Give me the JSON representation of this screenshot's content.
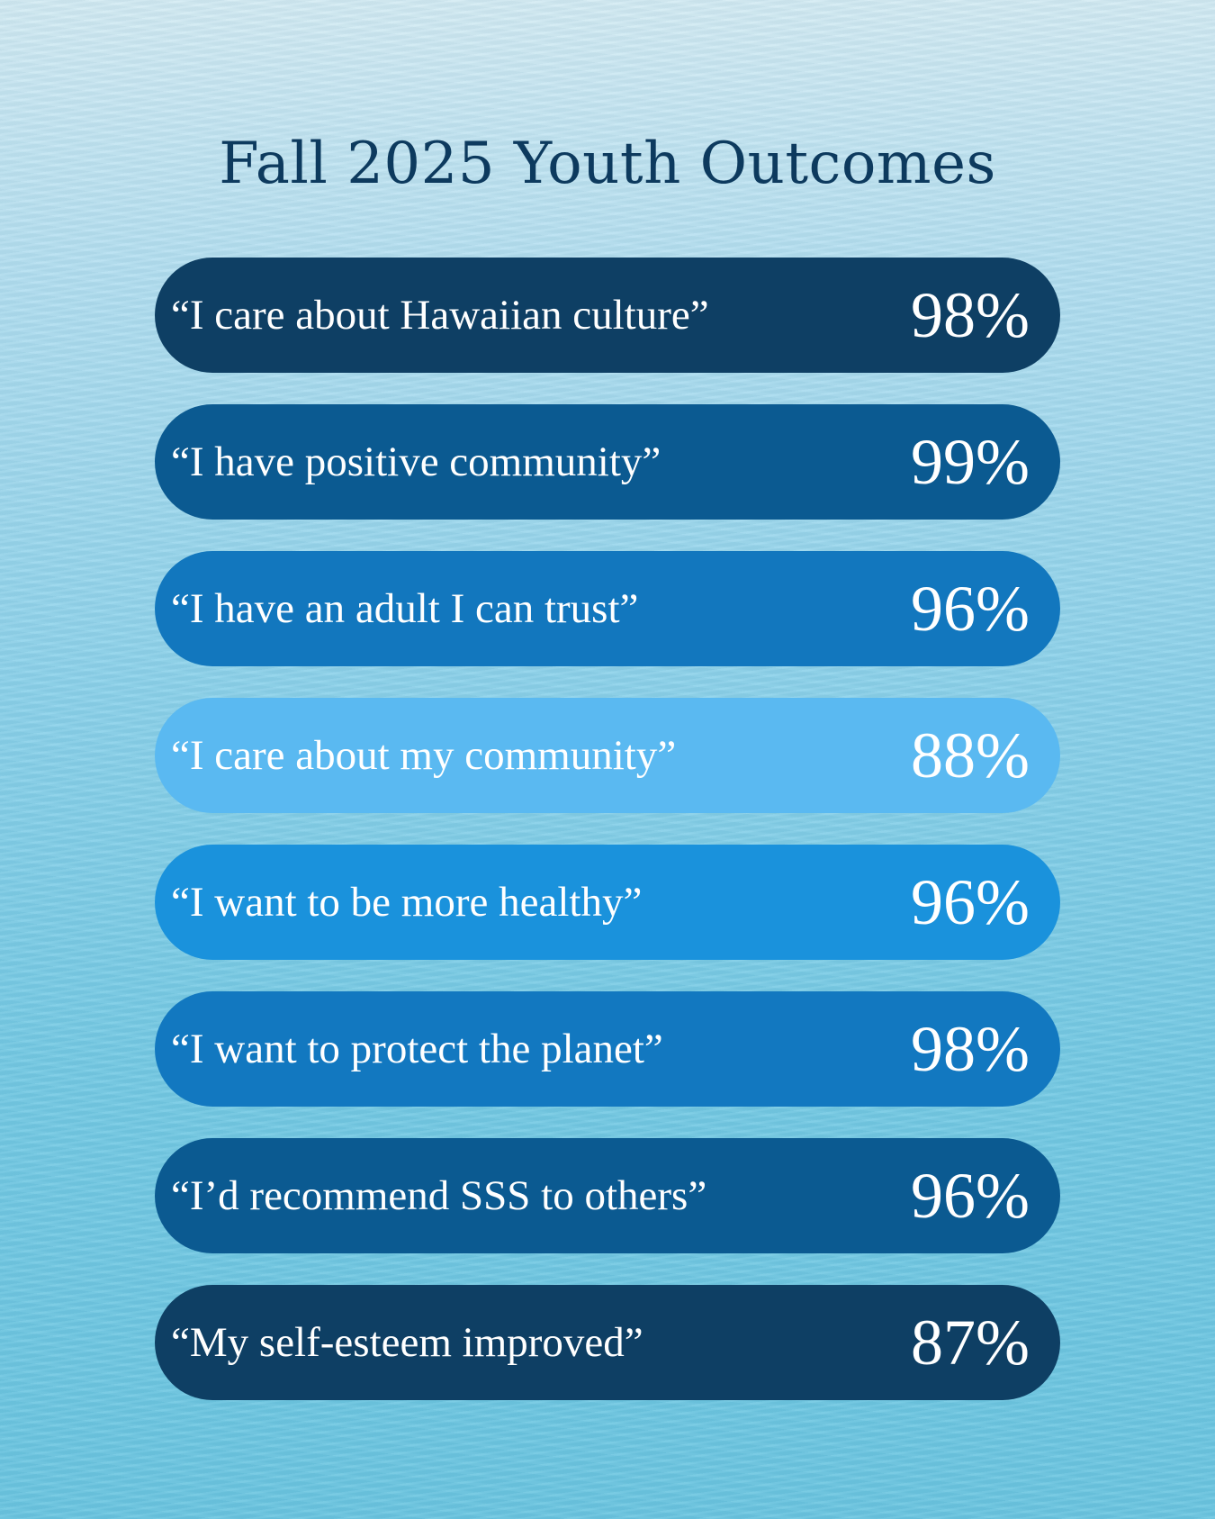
{
  "title": "Fall 2025 Youth Outcomes",
  "outcomes": [
    {
      "quote": "“I care about Hawaiian culture”",
      "value": "98%",
      "percent": 98,
      "color": "#0e3f64"
    },
    {
      "quote": "“I have positive community”",
      "value": "99%",
      "percent": 99,
      "color": "#0b5a91"
    },
    {
      "quote": "“I have an adult I can trust”",
      "value": "96%",
      "percent": 96,
      "color": "#1277be"
    },
    {
      "quote": "“I care about my community”",
      "value": "88%",
      "percent": 88,
      "color": "#5ab9f1"
    },
    {
      "quote": "“I want to be more healthy”",
      "value": "96%",
      "percent": 96,
      "color": "#1a92dc"
    },
    {
      "quote": "“I want to protect the planet”",
      "value": "98%",
      "percent": 98,
      "color": "#1278c0"
    },
    {
      "quote": "“I’d recommend SSS to others”",
      "value": "96%",
      "percent": 96,
      "color": "#0b5a91"
    },
    {
      "quote": "“My self-esteem improved”",
      "value": "87%",
      "percent": 87,
      "color": "#0e3f64"
    }
  ]
}
